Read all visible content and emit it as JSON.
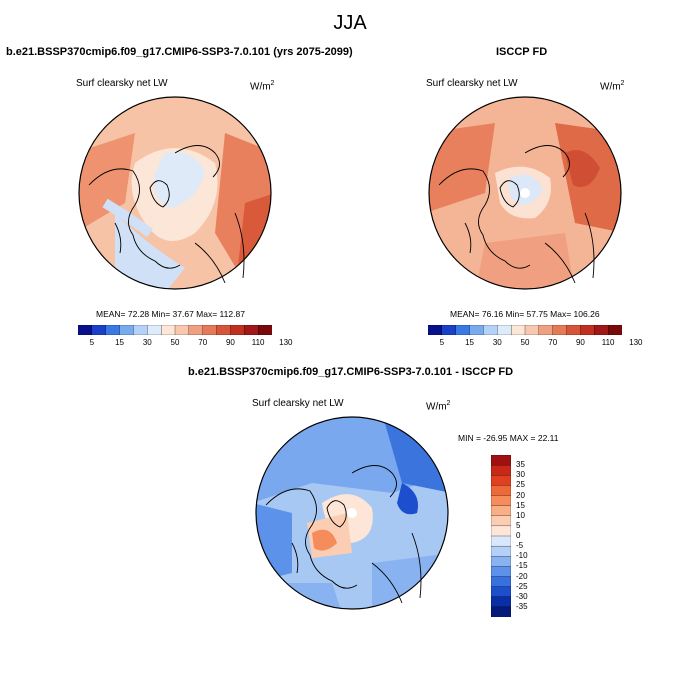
{
  "season": "JJA",
  "panels": [
    {
      "title": "b.e21.BSSP370cmip6.f09_g17.CMIP6-SSP3-7.0.101 (yrs 2075-2099)",
      "variable": "Surf clearsky net LW",
      "units": "W/m",
      "units_sup": "2",
      "stats": "MEAN=  72.28  Min=  37.67  Max= 112.87",
      "field": "model",
      "mean": 72.28,
      "min": 37.67,
      "max": 112.87
    },
    {
      "title": "ISCCP FD",
      "variable": "Surf clearsky net LW",
      "units": "W/m",
      "units_sup": "2",
      "stats": "MEAN=  76.16  Min=  57.75  Max= 106.26",
      "field": "obs",
      "mean": 76.16,
      "min": 57.75,
      "max": 106.26
    },
    {
      "title": "b.e21.BSSP370cmip6.f09_g17.CMIP6-SSP3-7.0.101 - ISCCP FD",
      "variable": "Surf clearsky net LW",
      "units": "W/m",
      "units_sup": "2",
      "stats": "MIN = -26.95 MAX =  22.11",
      "field": "diff",
      "min": -26.95,
      "max": 22.11
    }
  ],
  "colorbar_abs": {
    "labels": [
      "5",
      "15",
      "30",
      "50",
      "70",
      "90",
      "110",
      "130"
    ],
    "colors": [
      "#08108c",
      "#1a40c8",
      "#3a78e4",
      "#78aaf0",
      "#b4d2f8",
      "#dcecfc",
      "#fce6d6",
      "#f8c8ae",
      "#f0a080",
      "#e67a58",
      "#d85438",
      "#c03020",
      "#a01818",
      "#7a0a0a"
    ]
  },
  "colorbar_diff": {
    "labels": [
      "35",
      "30",
      "25",
      "20",
      "15",
      "10",
      "5",
      "0",
      "-5",
      "-10",
      "-15",
      "-20",
      "-25",
      "-30",
      "-35"
    ],
    "colors": [
      "#a01010",
      "#c82818",
      "#e04020",
      "#ee6838",
      "#f48c5c",
      "#f8ae86",
      "#fbcdb2",
      "#fde6d8",
      "#d8e8fa",
      "#b4d0f6",
      "#88b2f0",
      "#5c92ea",
      "#3870e0",
      "#1c4ece",
      "#0a2ea6",
      "#061a7a"
    ]
  }
}
